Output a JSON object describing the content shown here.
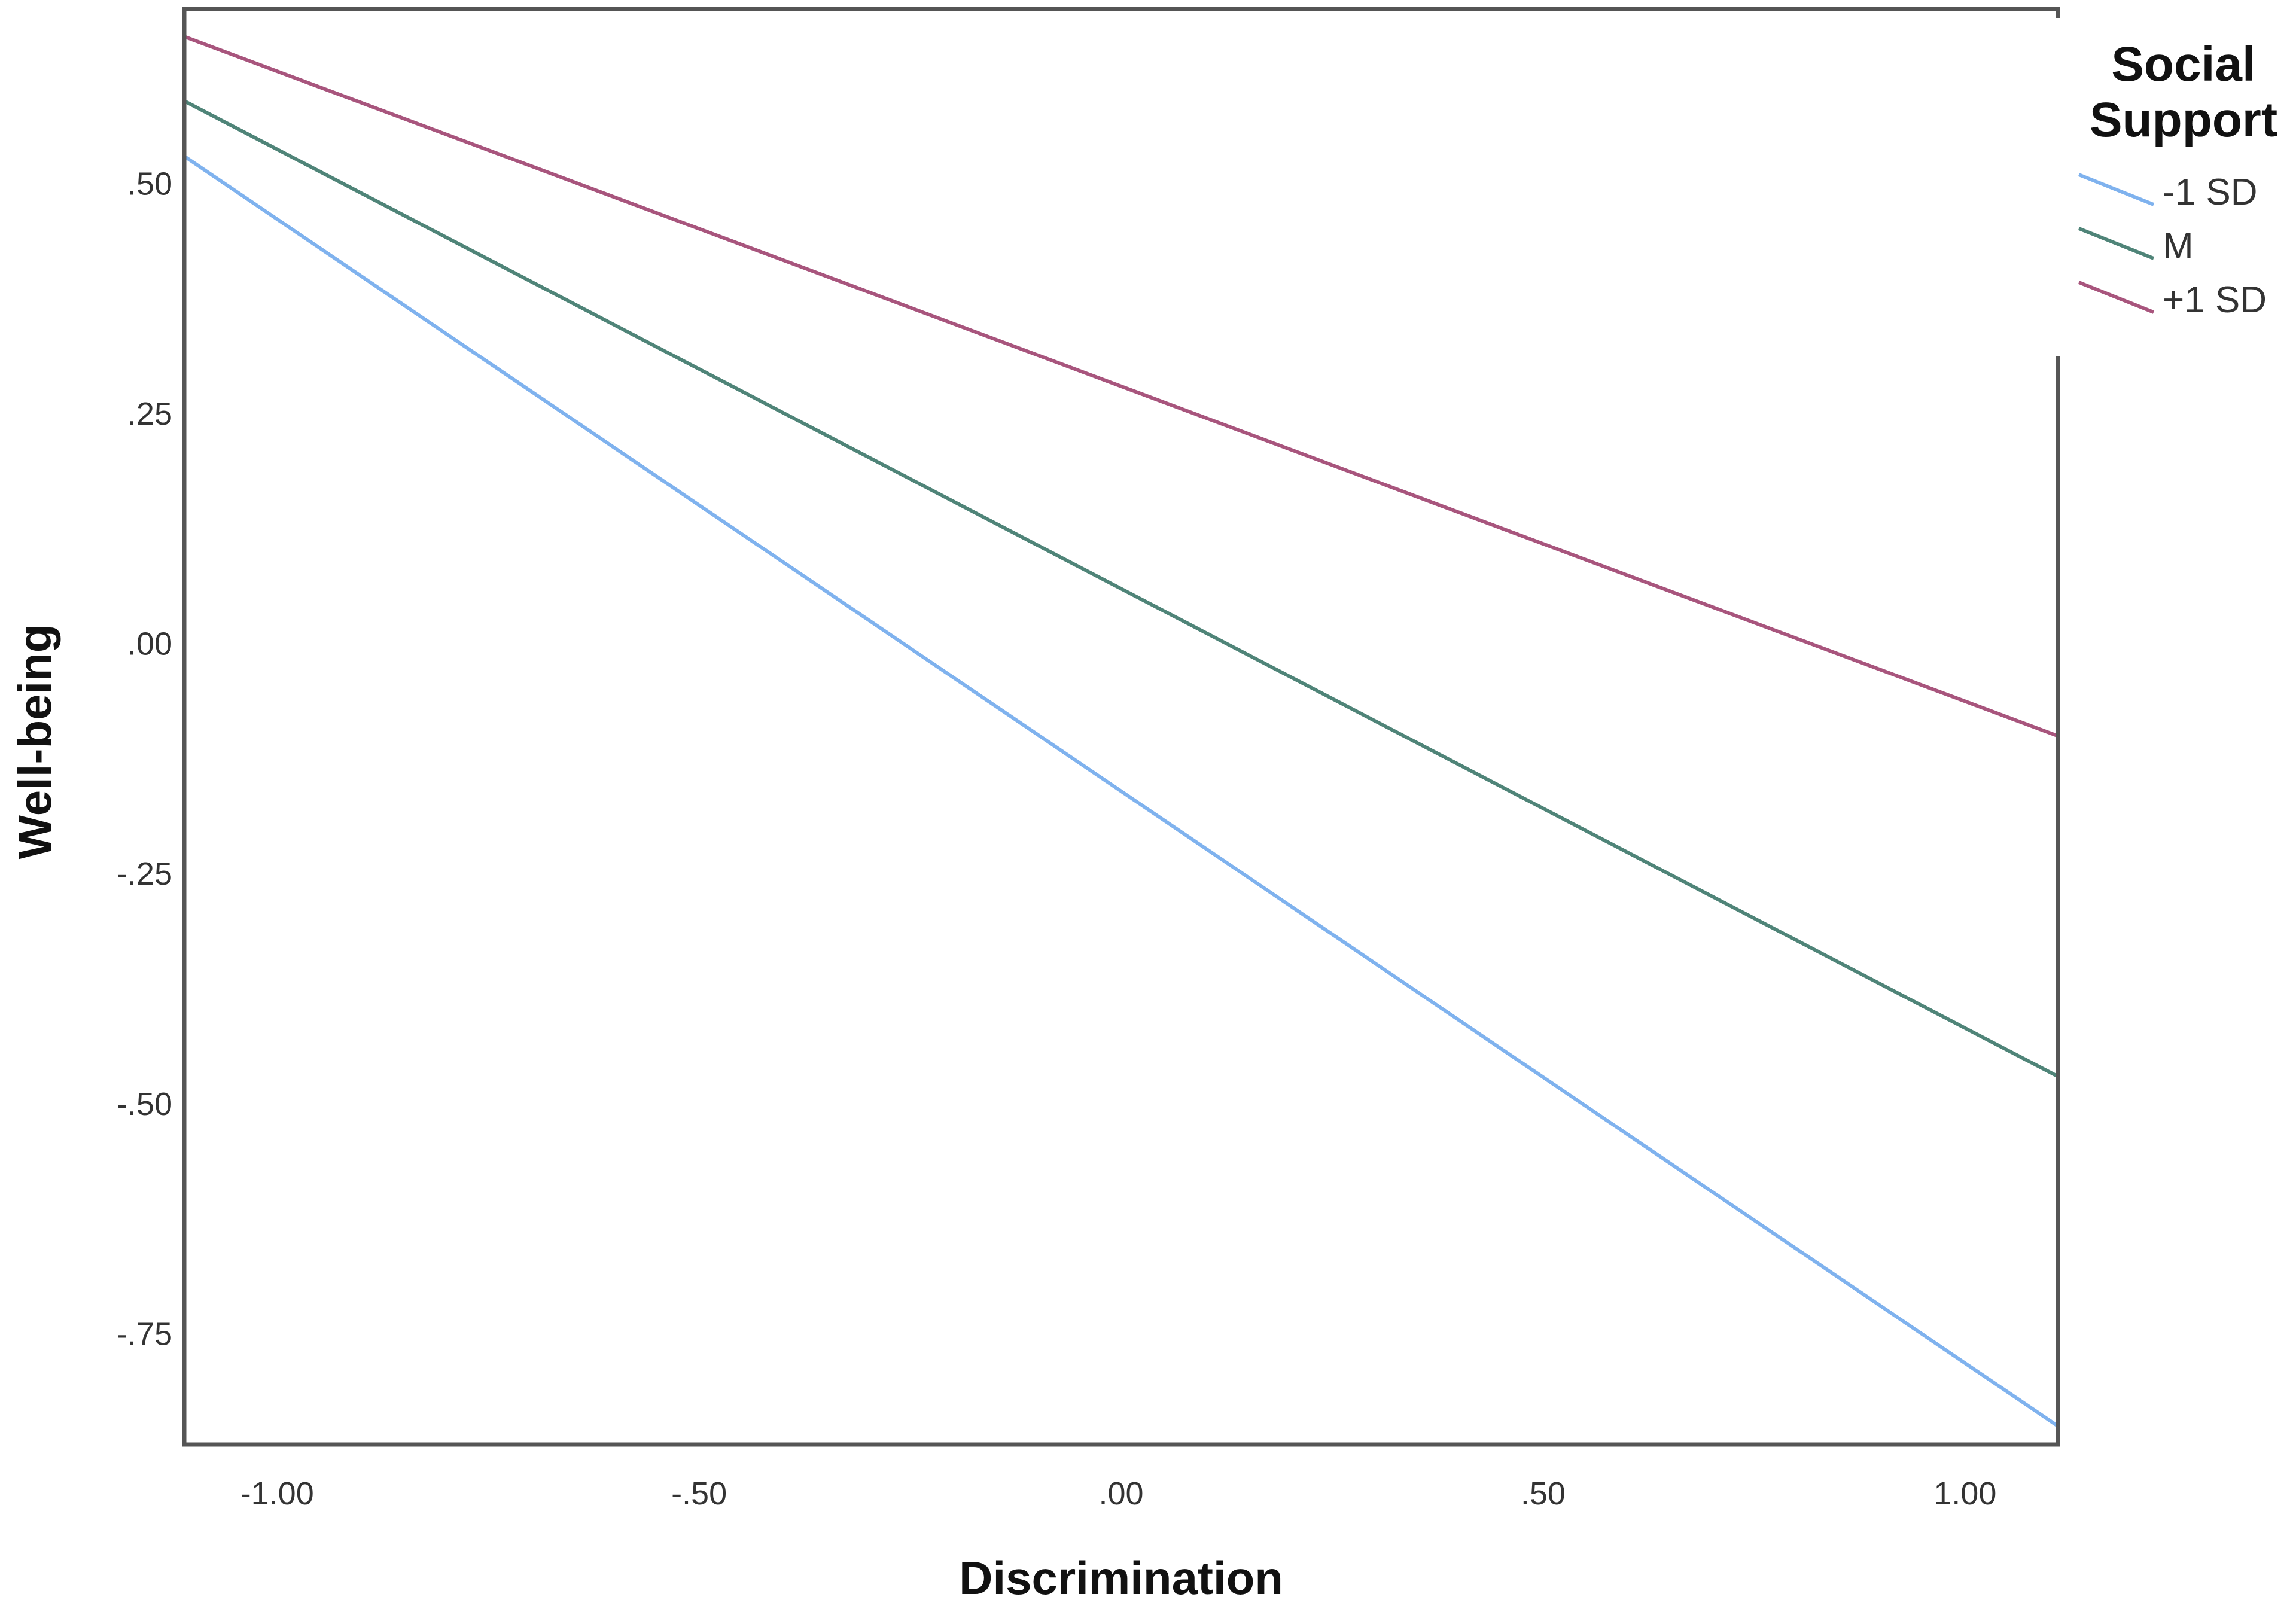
{
  "chart_data": {
    "type": "line",
    "title": "",
    "xlabel": "Discrimination",
    "ylabel": "Well-being",
    "xlim": [
      -1.11,
      1.11
    ],
    "ylim": [
      -0.87,
      0.69
    ],
    "x_ticks": [
      -1.0,
      -0.5,
      0.0,
      0.5,
      1.0
    ],
    "x_tick_labels": [
      "-1.00",
      "-.50",
      ".00",
      ".50",
      "1.00"
    ],
    "y_ticks": [
      0.5,
      0.25,
      0.0,
      -0.25,
      -0.5,
      -0.75
    ],
    "y_tick_labels": [
      ".50",
      ".25",
      ".00",
      "-.25",
      "-.50",
      "-.75"
    ],
    "grid": false,
    "legend": {
      "title_lines": [
        "Social",
        "Support"
      ],
      "placement": "right-top"
    },
    "series": [
      {
        "name": "-1 SD",
        "color": "#7fb2ee",
        "x": [
          -1.11,
          1.11
        ],
        "y": [
          0.53,
          -0.85
        ]
      },
      {
        "name": "M",
        "color": "#4f8478",
        "x": [
          -1.11,
          1.11
        ],
        "y": [
          0.59,
          -0.47
        ]
      },
      {
        "name": "+1 SD",
        "color": "#a8557d",
        "x": [
          -1.11,
          1.11
        ],
        "y": [
          0.66,
          -0.1
        ]
      }
    ]
  }
}
